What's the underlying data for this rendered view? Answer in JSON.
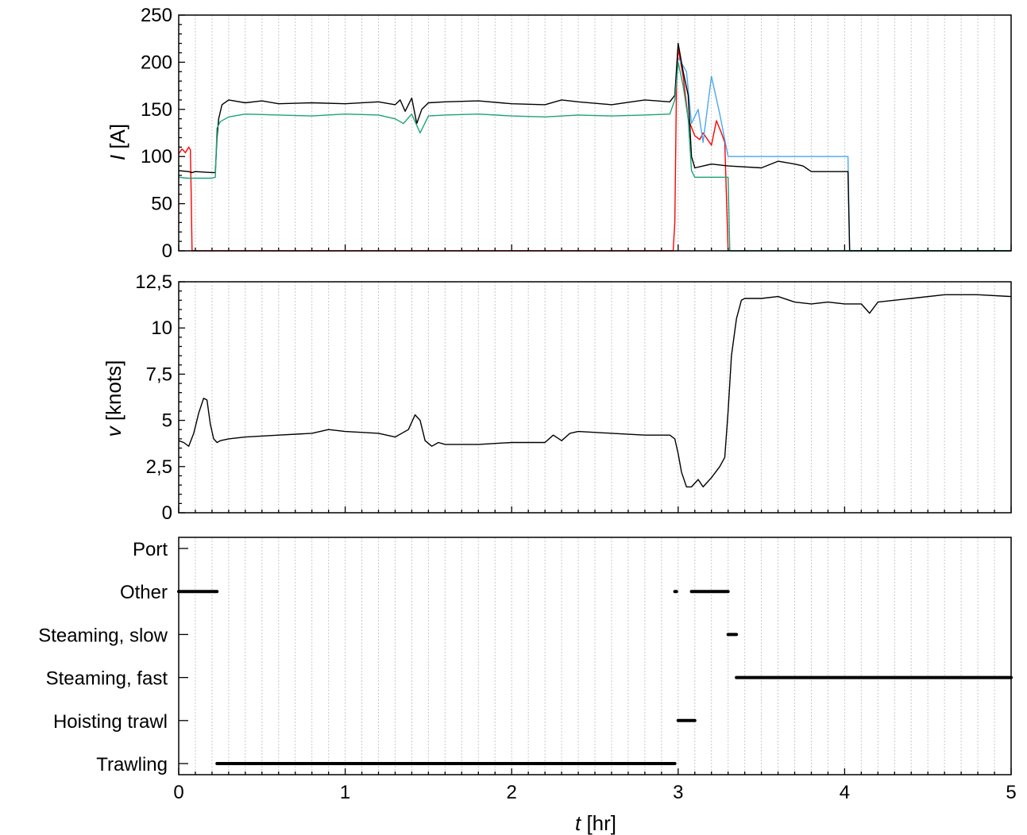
{
  "chart_data": [
    {
      "type": "line",
      "ylabel": "I [A]",
      "ylabel_symbol": "I",
      "ylabel_unit": " [A]",
      "xlim": [
        0,
        5
      ],
      "ylim": [
        0,
        250
      ],
      "yticks": [
        "0",
        "50",
        "100",
        "150",
        "200",
        "250"
      ],
      "grid": "vertical dotted lines at 0.1 hr",
      "series": [
        {
          "color": "#ff0000",
          "x": [
            0,
            0.02,
            0.04,
            0.06,
            0.07,
            0.075,
            0.08,
            0.1,
            1,
            2,
            2.95,
            2.97,
            2.98,
            2.99,
            3.0,
            3.03,
            3.06,
            3.1,
            3.13,
            3.15,
            3.2,
            3.23,
            3.26,
            3.28,
            3.3
          ],
          "y": [
            103,
            108,
            104,
            110,
            107,
            60,
            0,
            0,
            0,
            0,
            0,
            0,
            30,
            175,
            215,
            185,
            140,
            122,
            118,
            125,
            112,
            138,
            125,
            115,
            0
          ]
        },
        {
          "color": "#4aa8f0",
          "x": [
            3.0,
            3.05,
            3.08,
            3.12,
            3.15,
            3.2,
            3.25,
            3.3,
            3.4,
            3.6,
            3.8,
            4.0,
            4.02,
            4.03,
            4.5,
            5.0
          ],
          "y": [
            205,
            190,
            135,
            150,
            115,
            185,
            145,
            100,
            100,
            100,
            100,
            100,
            100,
            0,
            0,
            0
          ]
        },
        {
          "color": "#000000",
          "x": [
            0,
            0.06,
            0.08,
            0.1,
            0.2,
            0.22,
            0.23,
            0.24,
            0.26,
            0.3,
            0.4,
            0.5,
            0.6,
            0.8,
            1.0,
            1.2,
            1.3,
            1.33,
            1.36,
            1.4,
            1.43,
            1.46,
            1.5,
            1.6,
            1.8,
            2.0,
            2.2,
            2.3,
            2.4,
            2.6,
            2.8,
            2.95,
            2.98,
            3.0,
            3.03,
            3.06,
            3.08,
            3.1,
            3.2,
            3.3,
            3.5,
            3.6,
            3.7,
            3.75,
            3.8,
            4.0,
            4.02,
            4.03,
            4.5,
            5.0
          ],
          "y": [
            85,
            84,
            83,
            84,
            83,
            83,
            120,
            140,
            155,
            160,
            157,
            159,
            156,
            157,
            156,
            158,
            155,
            160,
            148,
            162,
            135,
            150,
            157,
            158,
            159,
            156,
            155,
            160,
            158,
            155,
            160,
            158,
            165,
            220,
            190,
            165,
            100,
            88,
            92,
            90,
            88,
            95,
            92,
            90,
            84,
            84,
            84,
            0,
            0,
            0
          ]
        },
        {
          "color": "#1aa37a",
          "x": [
            0,
            0.05,
            0.1,
            0.2,
            0.22,
            0.23,
            0.25,
            0.3,
            0.4,
            0.6,
            0.8,
            1.0,
            1.2,
            1.3,
            1.35,
            1.4,
            1.45,
            1.5,
            1.6,
            1.8,
            2.0,
            2.2,
            2.4,
            2.6,
            2.8,
            2.95,
            2.98,
            3.0,
            3.03,
            3.06,
            3.08,
            3.1,
            3.2,
            3.28,
            3.3,
            3.31,
            3.5,
            4.0,
            4.5,
            5.0
          ],
          "y": [
            78,
            77,
            77,
            77,
            78,
            130,
            137,
            142,
            145,
            144,
            143,
            145,
            144,
            140,
            135,
            145,
            125,
            143,
            144,
            145,
            143,
            142,
            144,
            143,
            144,
            145,
            160,
            200,
            175,
            140,
            85,
            78,
            78,
            78,
            78,
            0,
            0,
            0,
            0,
            0
          ]
        }
      ]
    },
    {
      "type": "line",
      "ylabel": "v [knots]",
      "ylabel_symbol": "v",
      "ylabel_unit": " [knots]",
      "xlim": [
        0,
        5
      ],
      "ylim": [
        0,
        12.5
      ],
      "yticks": [
        "0",
        "2,5",
        "5",
        "7,5",
        "10",
        "12,5"
      ],
      "grid": "vertical dotted lines at 0.1 hr",
      "series": [
        {
          "color": "#000000",
          "x": [
            0,
            0.03,
            0.06,
            0.09,
            0.12,
            0.15,
            0.17,
            0.19,
            0.21,
            0.23,
            0.25,
            0.3,
            0.4,
            0.6,
            0.8,
            0.9,
            1.0,
            1.2,
            1.3,
            1.38,
            1.42,
            1.45,
            1.48,
            1.52,
            1.56,
            1.6,
            1.8,
            2.0,
            2.2,
            2.25,
            2.3,
            2.35,
            2.4,
            2.6,
            2.8,
            2.95,
            2.98,
            3.0,
            3.02,
            3.05,
            3.08,
            3.12,
            3.15,
            3.2,
            3.25,
            3.28,
            3.3,
            3.32,
            3.35,
            3.38,
            3.4,
            3.5,
            3.6,
            3.7,
            3.8,
            3.9,
            4.0,
            4.1,
            4.15,
            4.2,
            4.4,
            4.6,
            4.8,
            5.0
          ],
          "y": [
            3.9,
            3.8,
            3.6,
            4.3,
            5.4,
            6.2,
            6.1,
            4.8,
            4.0,
            3.8,
            3.9,
            4.0,
            4.1,
            4.2,
            4.3,
            4.5,
            4.4,
            4.3,
            4.1,
            4.5,
            5.3,
            5.0,
            3.9,
            3.6,
            3.8,
            3.7,
            3.7,
            3.8,
            3.8,
            4.2,
            3.9,
            4.3,
            4.4,
            4.3,
            4.2,
            4.2,
            4.0,
            3.2,
            2.2,
            1.4,
            1.4,
            1.8,
            1.4,
            1.9,
            2.5,
            3.0,
            5.5,
            8.5,
            10.5,
            11.5,
            11.6,
            11.6,
            11.7,
            11.4,
            11.3,
            11.4,
            11.3,
            11.3,
            10.8,
            11.4,
            11.6,
            11.8,
            11.8,
            11.7
          ]
        }
      ]
    },
    {
      "type": "scatter",
      "xlabel": "t [hr]",
      "xlabel_symbol": "t",
      "xlabel_unit": " [hr]",
      "xlim": [
        0,
        5
      ],
      "xticks": [
        "0",
        "1",
        "2",
        "3",
        "4",
        "5"
      ],
      "categories": [
        "Trawling",
        "Hoisting trawl",
        "Steaming, fast",
        "Steaming, slow",
        "Other",
        "Port"
      ],
      "segments": [
        {
          "category": "Other",
          "x": [
            0.0,
            0.23
          ]
        },
        {
          "category": "Trawling",
          "x": [
            0.23,
            2.98
          ]
        },
        {
          "category": "Other",
          "x": [
            2.98,
            2.99
          ]
        },
        {
          "category": "Hoisting trawl",
          "x": [
            3.0,
            3.1
          ]
        },
        {
          "category": "Other",
          "x": [
            3.08,
            3.3
          ]
        },
        {
          "category": "Steaming, slow",
          "x": [
            3.3,
            3.35
          ]
        },
        {
          "category": "Steaming, fast",
          "x": [
            3.35,
            5.0
          ]
        }
      ]
    }
  ]
}
